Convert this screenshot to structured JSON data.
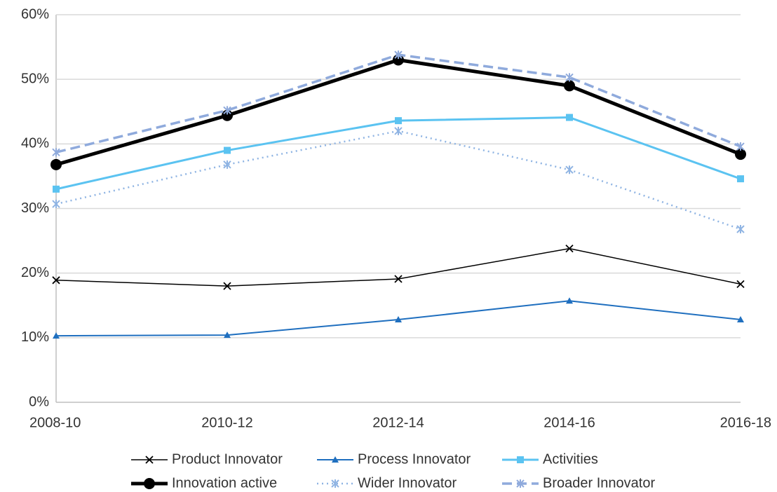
{
  "chart_data": {
    "type": "line",
    "categories": [
      "2008-10",
      "2010-12",
      "2012-14",
      "2014-16",
      "2016-18"
    ],
    "series": [
      {
        "name": "Product Innovator",
        "color": "#000000",
        "marker": "x",
        "dash": "solid",
        "line_width": 1.5,
        "values": [
          18.9,
          18.0,
          19.1,
          23.8,
          18.3
        ]
      },
      {
        "name": "Process Innovator",
        "color": "#1f6fbf",
        "marker": "triangle",
        "dash": "solid",
        "line_width": 2,
        "values": [
          10.3,
          10.4,
          12.8,
          15.7,
          12.8
        ]
      },
      {
        "name": "Activities",
        "color": "#5bc3f1",
        "marker": "square",
        "dash": "solid",
        "line_width": 3,
        "values": [
          33.0,
          39.0,
          43.6,
          44.1,
          34.6
        ]
      },
      {
        "name": "Innovation active",
        "color": "#000000",
        "marker": "circle",
        "dash": "solid",
        "line_width": 5,
        "values": [
          36.8,
          44.4,
          53.0,
          49.0,
          38.4
        ]
      },
      {
        "name": "Wider Innovator",
        "color": "#8fb4e3",
        "marker": "asterisk",
        "dash": "dotted",
        "line_width": 2.5,
        "values": [
          30.7,
          36.8,
          42.0,
          36.0,
          26.8
        ]
      },
      {
        "name": "Broader Innovator",
        "color": "#8faadc",
        "marker": "asterisk",
        "dash": "dashed",
        "line_width": 3.5,
        "values": [
          38.7,
          45.2,
          53.8,
          50.3,
          39.6
        ]
      }
    ],
    "ylim": [
      0,
      60
    ],
    "yticks": [
      {
        "value": 0,
        "label": "0%"
      },
      {
        "value": 10,
        "label": "10%"
      },
      {
        "value": 20,
        "label": "20%"
      },
      {
        "value": 30,
        "label": "30%"
      },
      {
        "value": 40,
        "label": "40%"
      },
      {
        "value": 50,
        "label": "50%"
      },
      {
        "value": 60,
        "label": "60%"
      }
    ],
    "grid": true,
    "legend": "bottom"
  }
}
